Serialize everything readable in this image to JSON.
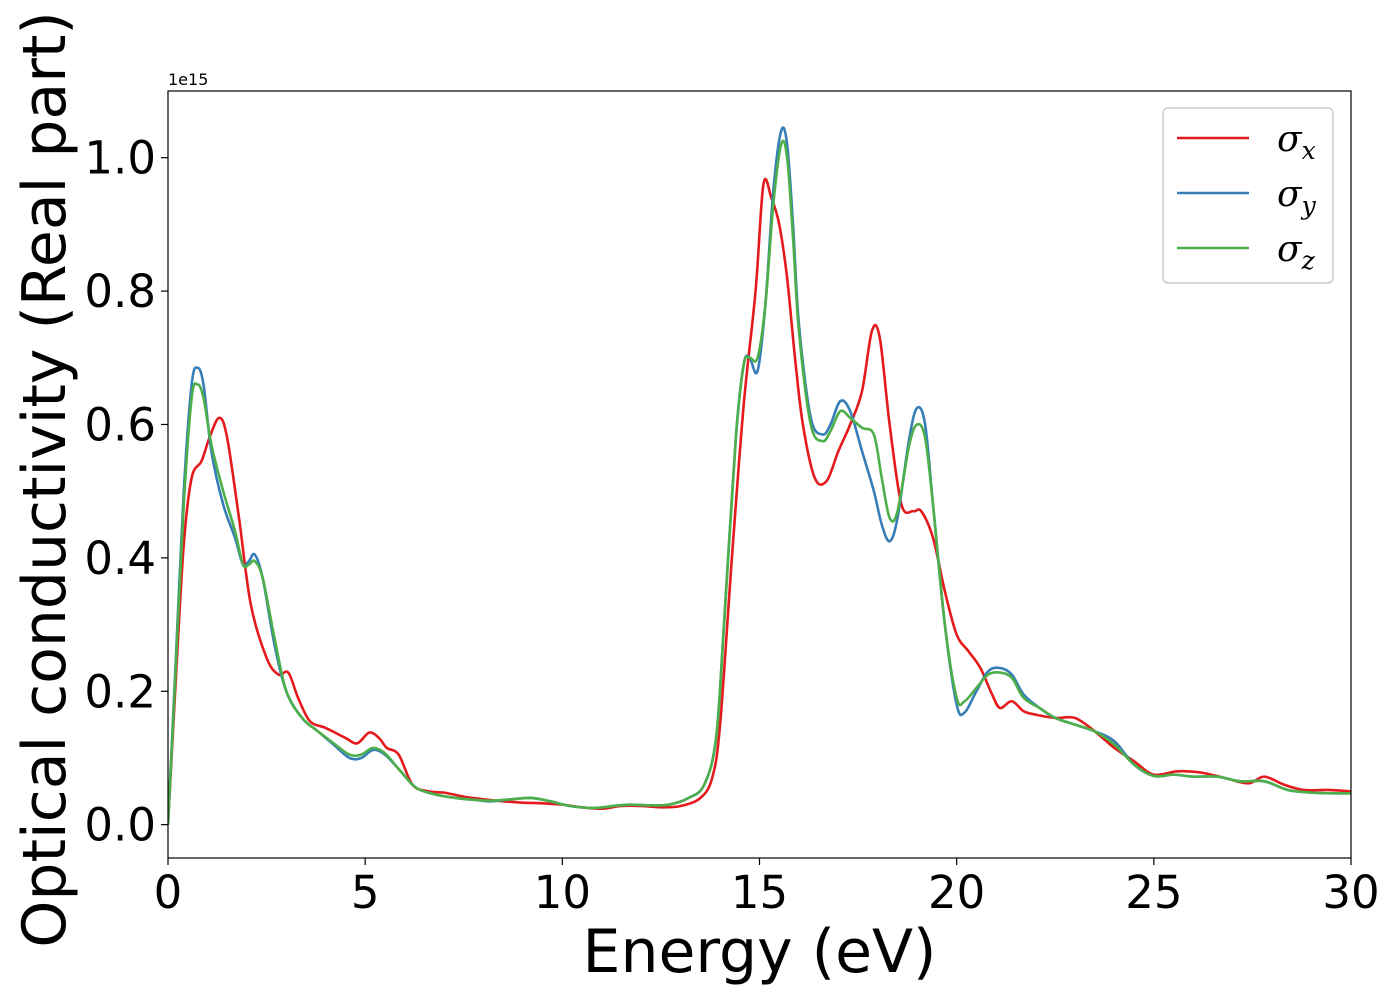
{
  "chart_data": {
    "type": "line",
    "title": "",
    "xlabel": "Energy (eV)",
    "ylabel": "Optical conductivity (Real part)",
    "y_offset_label": "1e15",
    "y_scale": 1000000000000000.0,
    "xlim": [
      0,
      30
    ],
    "ylim": [
      -0.05,
      1.1
    ],
    "xticks": [
      0,
      5,
      10,
      15,
      20,
      25,
      30
    ],
    "xtick_labels": [
      "0",
      "5",
      "10",
      "15",
      "20",
      "25",
      "30"
    ],
    "yticks": [
      0.0,
      0.2,
      0.4,
      0.6,
      0.8,
      1.0
    ],
    "ytick_labels": [
      "0.0",
      "0.2",
      "0.4",
      "0.6",
      "0.8",
      "1.0"
    ],
    "grid": false,
    "legend_position": "top-right",
    "series": [
      {
        "name": "σx",
        "symbol": "σ",
        "subscript": "x",
        "color": "#e41a1c",
        "points": [
          [
            0,
            0
          ],
          [
            0.2,
            0.22
          ],
          [
            0.4,
            0.42
          ],
          [
            0.6,
            0.52
          ],
          [
            0.85,
            0.545
          ],
          [
            1.05,
            0.58
          ],
          [
            1.3,
            0.61
          ],
          [
            1.5,
            0.58
          ],
          [
            1.8,
            0.46
          ],
          [
            2.1,
            0.33
          ],
          [
            2.5,
            0.25
          ],
          [
            2.8,
            0.225
          ],
          [
            3.05,
            0.228
          ],
          [
            3.3,
            0.19
          ],
          [
            3.6,
            0.155
          ],
          [
            4.0,
            0.145
          ],
          [
            4.5,
            0.13
          ],
          [
            4.8,
            0.122
          ],
          [
            5.1,
            0.138
          ],
          [
            5.35,
            0.13
          ],
          [
            5.55,
            0.115
          ],
          [
            5.85,
            0.105
          ],
          [
            6.2,
            0.06
          ],
          [
            6.6,
            0.05
          ],
          [
            7.0,
            0.048
          ],
          [
            7.5,
            0.042
          ],
          [
            8.0,
            0.038
          ],
          [
            8.5,
            0.035
          ],
          [
            9.0,
            0.033
          ],
          [
            9.5,
            0.032
          ],
          [
            10.0,
            0.03
          ],
          [
            10.5,
            0.026
          ],
          [
            11.0,
            0.024
          ],
          [
            11.5,
            0.028
          ],
          [
            12.0,
            0.028
          ],
          [
            12.5,
            0.026
          ],
          [
            13.0,
            0.028
          ],
          [
            13.5,
            0.04
          ],
          [
            13.8,
            0.07
          ],
          [
            14.0,
            0.15
          ],
          [
            14.3,
            0.4
          ],
          [
            14.6,
            0.63
          ],
          [
            14.9,
            0.8
          ],
          [
            15.1,
            0.96
          ],
          [
            15.3,
            0.94
          ],
          [
            15.5,
            0.9
          ],
          [
            15.7,
            0.82
          ],
          [
            15.9,
            0.7
          ],
          [
            16.1,
            0.6
          ],
          [
            16.4,
            0.52
          ],
          [
            16.7,
            0.515
          ],
          [
            17.0,
            0.56
          ],
          [
            17.3,
            0.6
          ],
          [
            17.6,
            0.65
          ],
          [
            17.85,
            0.74
          ],
          [
            18.05,
            0.73
          ],
          [
            18.3,
            0.6
          ],
          [
            18.6,
            0.48
          ],
          [
            18.9,
            0.47
          ],
          [
            19.1,
            0.47
          ],
          [
            19.4,
            0.43
          ],
          [
            19.7,
            0.35
          ],
          [
            20.0,
            0.285
          ],
          [
            20.3,
            0.26
          ],
          [
            20.6,
            0.235
          ],
          [
            20.9,
            0.195
          ],
          [
            21.1,
            0.175
          ],
          [
            21.4,
            0.185
          ],
          [
            21.7,
            0.17
          ],
          [
            22.0,
            0.165
          ],
          [
            22.5,
            0.16
          ],
          [
            23.0,
            0.16
          ],
          [
            23.5,
            0.14
          ],
          [
            24.0,
            0.115
          ],
          [
            24.5,
            0.095
          ],
          [
            25.0,
            0.075
          ],
          [
            25.6,
            0.08
          ],
          [
            26.2,
            0.078
          ],
          [
            26.8,
            0.07
          ],
          [
            27.4,
            0.062
          ],
          [
            27.8,
            0.072
          ],
          [
            28.3,
            0.06
          ],
          [
            28.8,
            0.052
          ],
          [
            29.4,
            0.052
          ],
          [
            30.0,
            0.05
          ]
        ]
      },
      {
        "name": "σy",
        "symbol": "σ",
        "subscript": "y",
        "color": "#377eb8",
        "points": [
          [
            0,
            0
          ],
          [
            0.2,
            0.25
          ],
          [
            0.4,
            0.5
          ],
          [
            0.6,
            0.66
          ],
          [
            0.75,
            0.685
          ],
          [
            0.9,
            0.66
          ],
          [
            1.1,
            0.56
          ],
          [
            1.4,
            0.48
          ],
          [
            1.7,
            0.43
          ],
          [
            1.9,
            0.39
          ],
          [
            2.05,
            0.395
          ],
          [
            2.2,
            0.405
          ],
          [
            2.4,
            0.37
          ],
          [
            2.7,
            0.27
          ],
          [
            3.0,
            0.2
          ],
          [
            3.4,
            0.16
          ],
          [
            3.8,
            0.14
          ],
          [
            4.2,
            0.12
          ],
          [
            4.6,
            0.1
          ],
          [
            4.9,
            0.1
          ],
          [
            5.2,
            0.112
          ],
          [
            5.5,
            0.105
          ],
          [
            5.9,
            0.08
          ],
          [
            6.3,
            0.055
          ],
          [
            6.8,
            0.045
          ],
          [
            7.3,
            0.04
          ],
          [
            7.8,
            0.037
          ],
          [
            8.2,
            0.035
          ],
          [
            8.7,
            0.038
          ],
          [
            9.2,
            0.04
          ],
          [
            9.7,
            0.035
          ],
          [
            10.2,
            0.028
          ],
          [
            10.8,
            0.025
          ],
          [
            11.3,
            0.028
          ],
          [
            11.7,
            0.03
          ],
          [
            12.2,
            0.029
          ],
          [
            12.7,
            0.03
          ],
          [
            13.2,
            0.04
          ],
          [
            13.6,
            0.06
          ],
          [
            13.9,
            0.13
          ],
          [
            14.1,
            0.3
          ],
          [
            14.4,
            0.58
          ],
          [
            14.6,
            0.69
          ],
          [
            14.75,
            0.7
          ],
          [
            14.95,
            0.68
          ],
          [
            15.15,
            0.78
          ],
          [
            15.35,
            0.95
          ],
          [
            15.55,
            1.04
          ],
          [
            15.7,
            1.02
          ],
          [
            15.85,
            0.9
          ],
          [
            16.0,
            0.75
          ],
          [
            16.3,
            0.61
          ],
          [
            16.6,
            0.585
          ],
          [
            16.8,
            0.6
          ],
          [
            17.05,
            0.635
          ],
          [
            17.3,
            0.62
          ],
          [
            17.6,
            0.56
          ],
          [
            17.9,
            0.5
          ],
          [
            18.1,
            0.45
          ],
          [
            18.3,
            0.425
          ],
          [
            18.5,
            0.46
          ],
          [
            18.8,
            0.58
          ],
          [
            19.0,
            0.625
          ],
          [
            19.2,
            0.6
          ],
          [
            19.4,
            0.48
          ],
          [
            19.7,
            0.3
          ],
          [
            20.0,
            0.18
          ],
          [
            20.2,
            0.168
          ],
          [
            20.5,
            0.2
          ],
          [
            20.8,
            0.23
          ],
          [
            21.1,
            0.235
          ],
          [
            21.4,
            0.225
          ],
          [
            21.7,
            0.195
          ],
          [
            22.1,
            0.175
          ],
          [
            22.5,
            0.16
          ],
          [
            23.0,
            0.15
          ],
          [
            23.5,
            0.14
          ],
          [
            24.0,
            0.125
          ],
          [
            24.5,
            0.09
          ],
          [
            25.0,
            0.073
          ],
          [
            25.5,
            0.075
          ],
          [
            26.0,
            0.072
          ],
          [
            26.6,
            0.072
          ],
          [
            27.2,
            0.065
          ],
          [
            27.8,
            0.065
          ],
          [
            28.4,
            0.052
          ],
          [
            29.0,
            0.048
          ],
          [
            29.5,
            0.047
          ],
          [
            30.0,
            0.047
          ]
        ]
      },
      {
        "name": "σz",
        "symbol": "σ",
        "subscript": "z",
        "color": "#4daf4a",
        "points": [
          [
            0,
            0
          ],
          [
            0.2,
            0.24
          ],
          [
            0.4,
            0.48
          ],
          [
            0.6,
            0.64
          ],
          [
            0.75,
            0.66
          ],
          [
            0.9,
            0.64
          ],
          [
            1.1,
            0.57
          ],
          [
            1.4,
            0.5
          ],
          [
            1.7,
            0.44
          ],
          [
            1.9,
            0.39
          ],
          [
            2.05,
            0.39
          ],
          [
            2.2,
            0.395
          ],
          [
            2.4,
            0.37
          ],
          [
            2.7,
            0.28
          ],
          [
            3.0,
            0.2
          ],
          [
            3.4,
            0.16
          ],
          [
            3.8,
            0.14
          ],
          [
            4.2,
            0.122
          ],
          [
            4.6,
            0.105
          ],
          [
            4.9,
            0.105
          ],
          [
            5.2,
            0.115
          ],
          [
            5.5,
            0.107
          ],
          [
            5.9,
            0.08
          ],
          [
            6.3,
            0.055
          ],
          [
            6.8,
            0.045
          ],
          [
            7.3,
            0.04
          ],
          [
            7.8,
            0.037
          ],
          [
            8.2,
            0.036
          ],
          [
            8.7,
            0.038
          ],
          [
            9.2,
            0.04
          ],
          [
            9.7,
            0.035
          ],
          [
            10.2,
            0.028
          ],
          [
            10.8,
            0.025
          ],
          [
            11.3,
            0.028
          ],
          [
            11.7,
            0.03
          ],
          [
            12.2,
            0.029
          ],
          [
            12.7,
            0.03
          ],
          [
            13.2,
            0.04
          ],
          [
            13.6,
            0.06
          ],
          [
            13.9,
            0.13
          ],
          [
            14.1,
            0.3
          ],
          [
            14.4,
            0.58
          ],
          [
            14.6,
            0.69
          ],
          [
            14.75,
            0.7
          ],
          [
            14.95,
            0.7
          ],
          [
            15.15,
            0.78
          ],
          [
            15.35,
            0.93
          ],
          [
            15.55,
            1.02
          ],
          [
            15.7,
            1.0
          ],
          [
            15.85,
            0.88
          ],
          [
            16.0,
            0.74
          ],
          [
            16.3,
            0.6
          ],
          [
            16.6,
            0.575
          ],
          [
            16.8,
            0.59
          ],
          [
            17.05,
            0.62
          ],
          [
            17.3,
            0.61
          ],
          [
            17.6,
            0.595
          ],
          [
            17.9,
            0.585
          ],
          [
            18.1,
            0.52
          ],
          [
            18.3,
            0.46
          ],
          [
            18.5,
            0.47
          ],
          [
            18.8,
            0.57
          ],
          [
            19.0,
            0.6
          ],
          [
            19.2,
            0.58
          ],
          [
            19.4,
            0.48
          ],
          [
            19.7,
            0.3
          ],
          [
            20.0,
            0.19
          ],
          [
            20.2,
            0.185
          ],
          [
            20.5,
            0.205
          ],
          [
            20.8,
            0.225
          ],
          [
            21.1,
            0.228
          ],
          [
            21.4,
            0.22
          ],
          [
            21.7,
            0.19
          ],
          [
            22.1,
            0.175
          ],
          [
            22.5,
            0.16
          ],
          [
            23.0,
            0.15
          ],
          [
            23.5,
            0.14
          ],
          [
            24.0,
            0.12
          ],
          [
            24.5,
            0.09
          ],
          [
            25.0,
            0.073
          ],
          [
            25.5,
            0.075
          ],
          [
            26.0,
            0.072
          ],
          [
            26.6,
            0.072
          ],
          [
            27.2,
            0.065
          ],
          [
            27.8,
            0.065
          ],
          [
            28.4,
            0.052
          ],
          [
            29.0,
            0.048
          ],
          [
            29.5,
            0.047
          ],
          [
            30.0,
            0.047
          ]
        ]
      }
    ]
  }
}
